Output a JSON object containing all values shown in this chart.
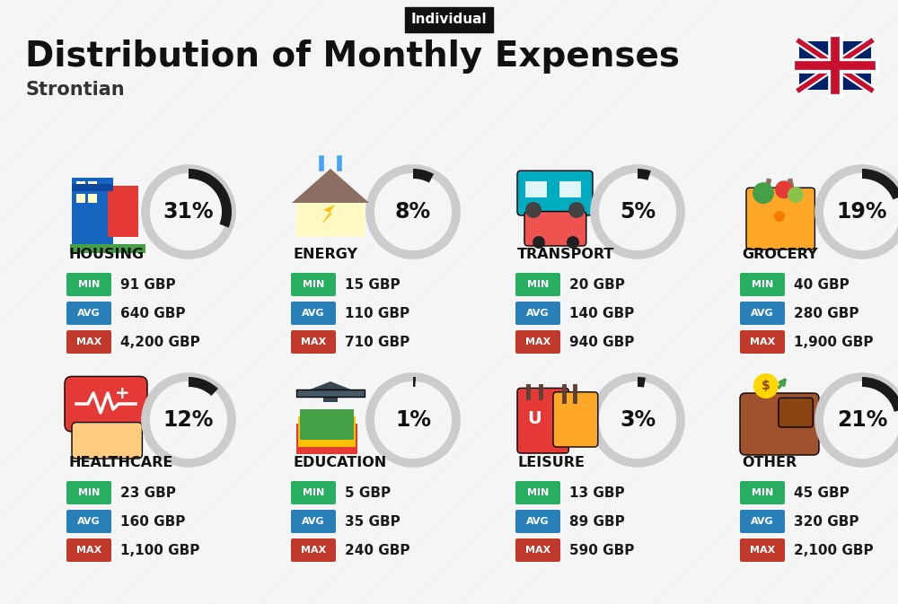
{
  "title": "Distribution of Monthly Expenses",
  "subtitle": "Strontian",
  "tag": "Individual",
  "bg_color": "#eeeeee",
  "categories": [
    {
      "name": "HOUSING",
      "pct": 31,
      "icon": "🏗",
      "min": "91 GBP",
      "avg": "640 GBP",
      "max": "4,200 GBP",
      "row": 0,
      "col": 0
    },
    {
      "name": "ENERGY",
      "pct": 8,
      "icon": "⚡",
      "min": "15 GBP",
      "avg": "110 GBP",
      "max": "710 GBP",
      "row": 0,
      "col": 1
    },
    {
      "name": "TRANSPORT",
      "pct": 5,
      "icon": "🚌",
      "min": "20 GBP",
      "avg": "140 GBP",
      "max": "940 GBP",
      "row": 0,
      "col": 2
    },
    {
      "name": "GROCERY",
      "pct": 19,
      "icon": "🛒",
      "min": "40 GBP",
      "avg": "280 GBP",
      "max": "1,900 GBP",
      "row": 0,
      "col": 3
    },
    {
      "name": "HEALTHCARE",
      "pct": 12,
      "icon": "❤",
      "min": "23 GBP",
      "avg": "160 GBP",
      "max": "1,100 GBP",
      "row": 1,
      "col": 0
    },
    {
      "name": "EDUCATION",
      "pct": 1,
      "icon": "🎓",
      "min": "5 GBP",
      "avg": "35 GBP",
      "max": "240 GBP",
      "row": 1,
      "col": 1
    },
    {
      "name": "LEISURE",
      "pct": 3,
      "icon": "🛍",
      "min": "13 GBP",
      "avg": "89 GBP",
      "max": "590 GBP",
      "row": 1,
      "col": 2
    },
    {
      "name": "OTHER",
      "pct": 21,
      "icon": "👜",
      "min": "45 GBP",
      "avg": "320 GBP",
      "max": "2,100 GBP",
      "row": 1,
      "col": 3
    }
  ],
  "color_min": "#27ae60",
  "color_avg": "#2980b9",
  "color_max": "#c0392b",
  "circle_bg": "#cccccc",
  "arc_color": "#1a1a1a",
  "stripe_color": "#ffffff",
  "stripe_alpha": 0.45,
  "tag_bg": "#111111",
  "tag_color": "#ffffff",
  "title_color": "#111111",
  "subtitle_color": "#333333"
}
